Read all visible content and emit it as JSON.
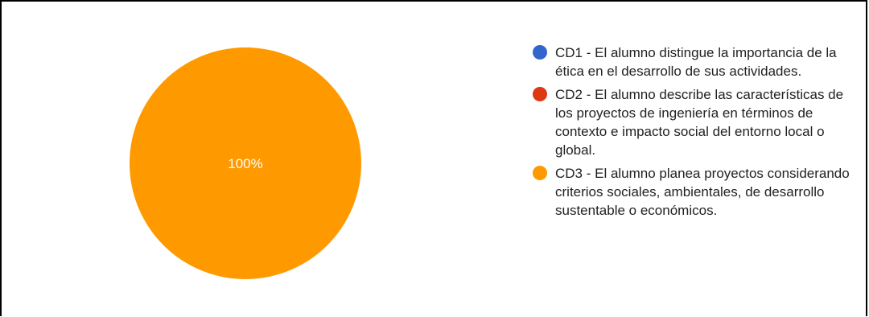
{
  "chart_data": {
    "type": "pie",
    "categories": [
      "CD1 - El alumno distingue la importancia de la ética en el desarrollo de sus actividades.",
      "CD2 - El alumno describe las características de los proyectos de ingeniería en términos de contexto e impacto social del entorno local o global.",
      "CD3 - El alumno planea proyectos considerando criterios sociales, ambientales, de desarrollo sustentable o económicos."
    ],
    "values": [
      0,
      0,
      100
    ],
    "colors": [
      "#3366cc",
      "#dc3912",
      "#ff9900"
    ],
    "data_labels": [
      "",
      "",
      "100%"
    ],
    "legend_position": "right"
  }
}
